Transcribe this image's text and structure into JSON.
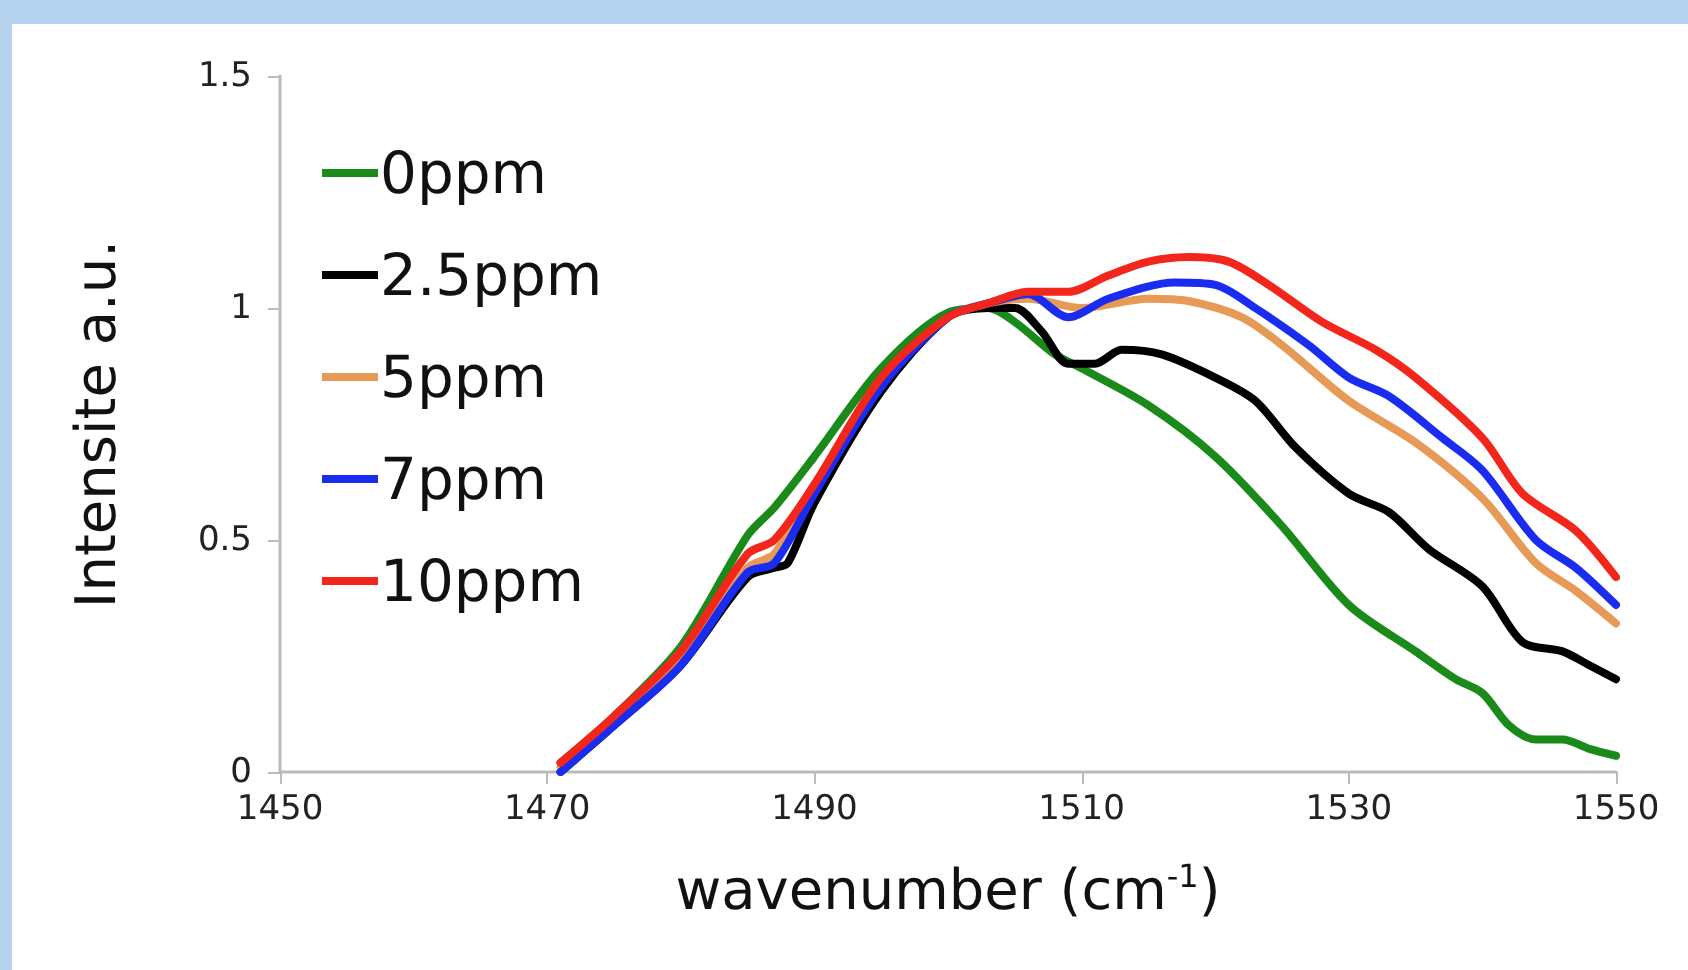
{
  "chart_data": {
    "type": "line",
    "xlabel": "wavenumber (cm$^{-1}$)",
    "ylabel": "Intensite a.u.",
    "xlim": [
      1450,
      1550
    ],
    "xticks": [
      1450,
      1470,
      1490,
      1510,
      1530,
      1550
    ],
    "ylim": [
      0,
      1.5
    ],
    "yticks": [
      0,
      0.5,
      1,
      1.5
    ],
    "grid": false,
    "legend": "top left",
    "marker": "none",
    "line_style": "solid",
    "series": [
      {
        "name": "0ppm",
        "color": "#1a8a1a",
        "x": [
          1471,
          1475,
          1480,
          1485,
          1487,
          1490,
          1495,
          1500,
          1503,
          1505,
          1508,
          1510,
          1515,
          1520,
          1525,
          1530,
          1535,
          1538,
          1540,
          1542,
          1544,
          1546,
          1548,
          1550
        ],
        "values": [
          0.02,
          0.12,
          0.27,
          0.51,
          0.57,
          0.68,
          0.87,
          0.99,
          1.0,
          0.97,
          0.9,
          0.87,
          0.79,
          0.68,
          0.53,
          0.36,
          0.26,
          0.2,
          0.17,
          0.1,
          0.07,
          0.07,
          0.05,
          0.035
        ]
      },
      {
        "name": "2.5ppm",
        "color": "#000000",
        "x": [
          1471,
          1475,
          1480,
          1485,
          1487,
          1488,
          1490,
          1495,
          1500,
          1503,
          1505,
          1507,
          1509,
          1511,
          1513,
          1516,
          1520,
          1523,
          1526,
          1530,
          1533,
          1536,
          1540,
          1543,
          1546,
          1548,
          1550
        ],
        "values": [
          0,
          0.1,
          0.23,
          0.42,
          0.44,
          0.45,
          0.58,
          0.82,
          0.98,
          1.0,
          1.0,
          0.95,
          0.88,
          0.88,
          0.91,
          0.9,
          0.85,
          0.8,
          0.7,
          0.6,
          0.56,
          0.48,
          0.4,
          0.28,
          0.26,
          0.23,
          0.2
        ]
      },
      {
        "name": "5ppm",
        "color": "#e69a55",
        "x": [
          1471,
          1475,
          1480,
          1485,
          1487,
          1490,
          1495,
          1500,
          1503,
          1506,
          1510,
          1515,
          1518,
          1522,
          1525,
          1530,
          1535,
          1540,
          1544,
          1547,
          1550
        ],
        "values": [
          0.01,
          0.11,
          0.24,
          0.44,
          0.47,
          0.61,
          0.84,
          0.98,
          1.01,
          1.02,
          1.0,
          1.02,
          1.015,
          0.98,
          0.92,
          0.8,
          0.71,
          0.59,
          0.45,
          0.39,
          0.32
        ]
      },
      {
        "name": "7ppm",
        "color": "#1a2cf0",
        "x": [
          1471,
          1475,
          1480,
          1485,
          1487,
          1490,
          1495,
          1500,
          1503,
          1506,
          1509,
          1512,
          1517,
          1520,
          1523,
          1527,
          1530,
          1533,
          1537,
          1540,
          1544,
          1547,
          1550
        ],
        "values": [
          0,
          0.1,
          0.23,
          0.43,
          0.45,
          0.6,
          0.83,
          0.98,
          1.01,
          1.03,
          0.98,
          1.02,
          1.055,
          1.05,
          1.0,
          0.92,
          0.85,
          0.81,
          0.72,
          0.65,
          0.5,
          0.44,
          0.36
        ]
      },
      {
        "name": "10ppm",
        "color": "#f2261a",
        "x": [
          1471,
          1475,
          1480,
          1485,
          1487,
          1490,
          1495,
          1500,
          1503,
          1506,
          1509,
          1512,
          1515,
          1518,
          1521,
          1524,
          1528,
          1532,
          1535,
          1540,
          1543,
          1547,
          1550
        ],
        "values": [
          0.02,
          0.12,
          0.26,
          0.47,
          0.5,
          0.62,
          0.85,
          0.98,
          1.01,
          1.035,
          1.035,
          1.07,
          1.1,
          1.11,
          1.1,
          1.05,
          0.97,
          0.91,
          0.85,
          0.72,
          0.6,
          0.52,
          0.42
        ]
      }
    ]
  }
}
